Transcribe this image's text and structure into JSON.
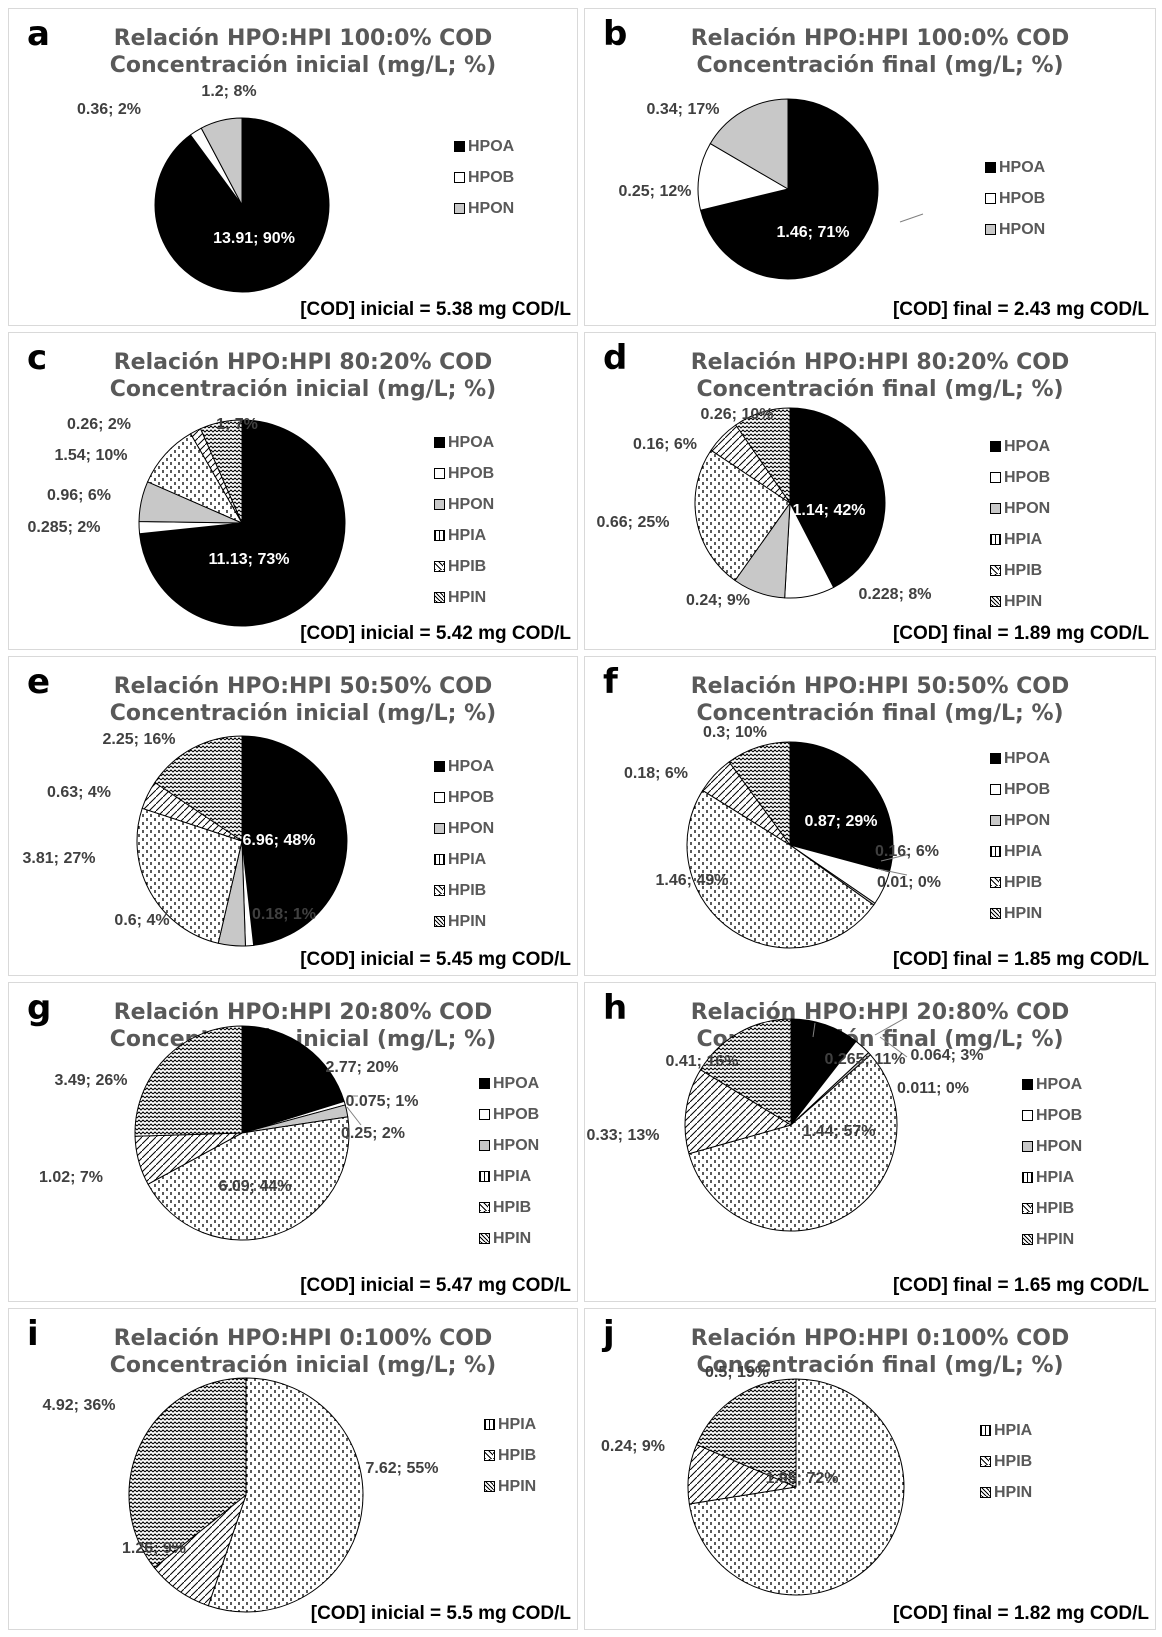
{
  "colors": {
    "HPOA": "#000000",
    "HPOB": "#ffffff",
    "HPON": "#c8c8c8",
    "border": "#d9d9d9",
    "title": "#595959"
  },
  "chart_data": [
    {
      "type": "pie",
      "label": "a",
      "title": "Relación HPO:HPI 100:0% COD",
      "subtitle": "Concentración inicial (mg/L; %)",
      "footer": "[COD] inicial = 5.38 mg COD/L",
      "legend": [
        "HPOA",
        "HPOB",
        "HPON"
      ],
      "categories": [
        "HPOA",
        "HPOB",
        "HPON"
      ],
      "values": [
        13.91,
        0.36,
        1.2
      ],
      "labels": [
        "13.91; 90%",
        "0.36; 2%",
        "1.2; 8%"
      ]
    },
    {
      "type": "pie",
      "label": "b",
      "title": "Relación HPO:HPI 100:0% COD",
      "subtitle": "Concentración final (mg/L; %)",
      "footer": "[COD] final = 2.43 mg COD/L",
      "legend": [
        "HPOA",
        "HPOB",
        "HPON"
      ],
      "categories": [
        "HPOA",
        "HPOB",
        "HPON"
      ],
      "values": [
        1.46,
        0.25,
        0.34
      ],
      "labels": [
        "1.46; 71%",
        "0.25; 12%",
        "0.34; 17%"
      ]
    },
    {
      "type": "pie",
      "label": "c",
      "title": "Relación HPO:HPI 80:20% COD",
      "subtitle": "Concentración inicial (mg/L; %)",
      "footer": "[COD] inicial = 5.42 mg COD/L",
      "legend": [
        "HPOA",
        "HPOB",
        "HPON",
        "HPIA",
        "HPIB",
        "HPIN"
      ],
      "categories": [
        "HPOA",
        "HPOB",
        "HPON",
        "HPIA",
        "HPIB",
        "HPIN"
      ],
      "values": [
        11.13,
        0.285,
        0.96,
        1.54,
        0.26,
        1
      ],
      "labels": [
        "11.13; 73%",
        "0.285; 2%",
        "0.96; 6%",
        "1.54; 10%",
        "0.26; 2%",
        "1; 7%"
      ]
    },
    {
      "type": "pie",
      "label": "d",
      "title": "Relación HPO:HPI 80:20% COD",
      "subtitle": "Concentración final (mg/L; %)",
      "footer": "[COD] final = 1.89 mg COD/L",
      "legend": [
        "HPOA",
        "HPOB",
        "HPON",
        "HPIA",
        "HPIB",
        "HPIN"
      ],
      "categories": [
        "HPOA",
        "HPOB",
        "HPON",
        "HPIA",
        "HPIB",
        "HPIN"
      ],
      "values": [
        1.14,
        0.228,
        0.24,
        0.66,
        0.16,
        0.26
      ],
      "labels": [
        "1.14; 42%",
        "0.228; 8%",
        "0.24; 9%",
        "0.66; 25%",
        "0.16; 6%",
        "0.26; 10%"
      ]
    },
    {
      "type": "pie",
      "label": "e",
      "title": "Relación HPO:HPI 50:50% COD",
      "subtitle": "Concentración inicial (mg/L; %)",
      "footer": "[COD] inicial = 5.45 mg COD/L",
      "legend": [
        "HPOA",
        "HPOB",
        "HPON",
        "HPIA",
        "HPIB",
        "HPIN"
      ],
      "categories": [
        "HPOA",
        "HPOB",
        "HPON",
        "HPIA",
        "HPIB",
        "HPIN"
      ],
      "values": [
        6.96,
        0.18,
        0.6,
        3.81,
        0.63,
        2.25
      ],
      "labels": [
        "6.96; 48%",
        "0.18; 1%",
        "0.6; 4%",
        "3.81; 27%",
        "0.63; 4%",
        "2.25; 16%"
      ]
    },
    {
      "type": "pie",
      "label": "f",
      "title": "Relación HPO:HPI 50:50% COD",
      "subtitle": "Concentración final (mg/L; %)",
      "footer": "[COD] final = 1.85 mg COD/L",
      "legend": [
        "HPOA",
        "HPOB",
        "HPON",
        "HPIA",
        "HPIB",
        "HPIN"
      ],
      "categories": [
        "HPOA",
        "HPOB",
        "HPON",
        "HPIA",
        "HPIB",
        "HPIN"
      ],
      "values": [
        0.87,
        0.16,
        0.01,
        1.46,
        0.18,
        0.3
      ],
      "labels": [
        "0.87; 29%",
        "0.16; 6%",
        "0.01; 0%",
        "1.46; 49%",
        "0.18; 6%",
        "0.3; 10%"
      ]
    },
    {
      "type": "pie",
      "label": "g",
      "title": "Relación HPO:HPI 20:80% COD",
      "subtitle": "Concentración inicial (mg/L; %)",
      "footer": "[COD] inicial = 5.47 mg COD/L",
      "legend": [
        "HPOA",
        "HPOB",
        "HPON",
        "HPIA",
        "HPIB",
        "HPIN"
      ],
      "categories": [
        "HPOA",
        "HPOB",
        "HPON",
        "HPIA",
        "HPIB",
        "HPIN"
      ],
      "values": [
        2.77,
        0.075,
        0.25,
        6.09,
        1.02,
        3.49
      ],
      "labels": [
        "2.77; 20%",
        "0.075; 1%",
        "0.25; 2%",
        "6.09; 44%",
        "1.02; 7%",
        "3.49; 26%"
      ]
    },
    {
      "type": "pie",
      "label": "h",
      "title": "Relación HPO:HPI 20:80% COD",
      "subtitle": "Concentración final (mg/L; %)",
      "footer": "[COD] final = 1.65 mg COD/L",
      "legend": [
        "HPOA",
        "HPOB",
        "HPON",
        "HPIA",
        "HPIB",
        "HPIN"
      ],
      "categories": [
        "HPOA",
        "HPOB",
        "HPON",
        "HPIA",
        "HPIB",
        "HPIN"
      ],
      "values": [
        0.265,
        0.064,
        0.011,
        1.44,
        0.33,
        0.41
      ],
      "labels": [
        "0.265; 11%",
        "0.064; 3%",
        "0.011; 0%",
        "1.44; 57%",
        "0.33; 13%",
        "0.41; 16%"
      ]
    },
    {
      "type": "pie",
      "label": "i",
      "title": "Relación HPO:HPI 0:100% COD",
      "subtitle": "Concentración inicial (mg/L; %)",
      "footer": "[COD] inicial = 5.5 mg COD/L",
      "legend": [
        "HPIA",
        "HPIB",
        "HPIN"
      ],
      "categories": [
        "HPIA",
        "HPIB",
        "HPIN"
      ],
      "values": [
        7.62,
        1.26,
        4.92
      ],
      "labels": [
        "7.62; 55%",
        "1.26; 9%",
        "4.92; 36%"
      ]
    },
    {
      "type": "pie",
      "label": "j",
      "title": "Relación HPO:HPI 0:100% COD",
      "subtitle": "Concentración final (mg/L; %)",
      "footer": "[COD] final = 1.82 mg COD/L",
      "legend": [
        "HPIA",
        "HPIB",
        "HPIN"
      ],
      "categories": [
        "HPIA",
        "HPIB",
        "HPIN"
      ],
      "values": [
        1.95,
        0.24,
        0.5
      ],
      "labels": [
        "1.95; 72%",
        "0.24; 9%",
        "0.5; 19%"
      ]
    }
  ]
}
